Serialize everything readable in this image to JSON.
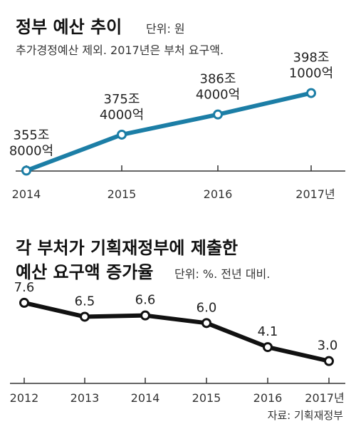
{
  "chart_data": [
    {
      "type": "line",
      "title": "정부 예산 추이",
      "unit": "단위: 원",
      "subtitle": "추가경정예산 제외. 2017년은 부처 요구액.",
      "categories": [
        "2014",
        "2015",
        "2016",
        "2017년"
      ],
      "values": [
        3558000,
        3754000,
        3864000,
        3981000
      ],
      "data_labels": [
        [
          "355조",
          "8000억"
        ],
        [
          "375조",
          "4000억"
        ],
        [
          "386조",
          "4000억"
        ],
        [
          "398조",
          "1000억"
        ]
      ],
      "ylim": [
        3400000,
        4100000
      ],
      "color": "#1c7ea6",
      "grid": false
    },
    {
      "type": "line",
      "title_lines": [
        "각 부처가 기획재정부에 제출한",
        "예산 요구액 증가율"
      ],
      "unit": "단위: %. 전년 대비.",
      "categories": [
        "2012",
        "2013",
        "2014",
        "2015",
        "2016",
        "2017년"
      ],
      "values": [
        7.6,
        6.5,
        6.6,
        6.0,
        4.1,
        3.0
      ],
      "data_labels": [
        "7.6",
        "6.5",
        "6.6",
        "6.0",
        "4.1",
        "3.0"
      ],
      "ylim": [
        0,
        9
      ],
      "color": "#111111",
      "grid": false
    }
  ],
  "source": "자료: 기획재정부"
}
